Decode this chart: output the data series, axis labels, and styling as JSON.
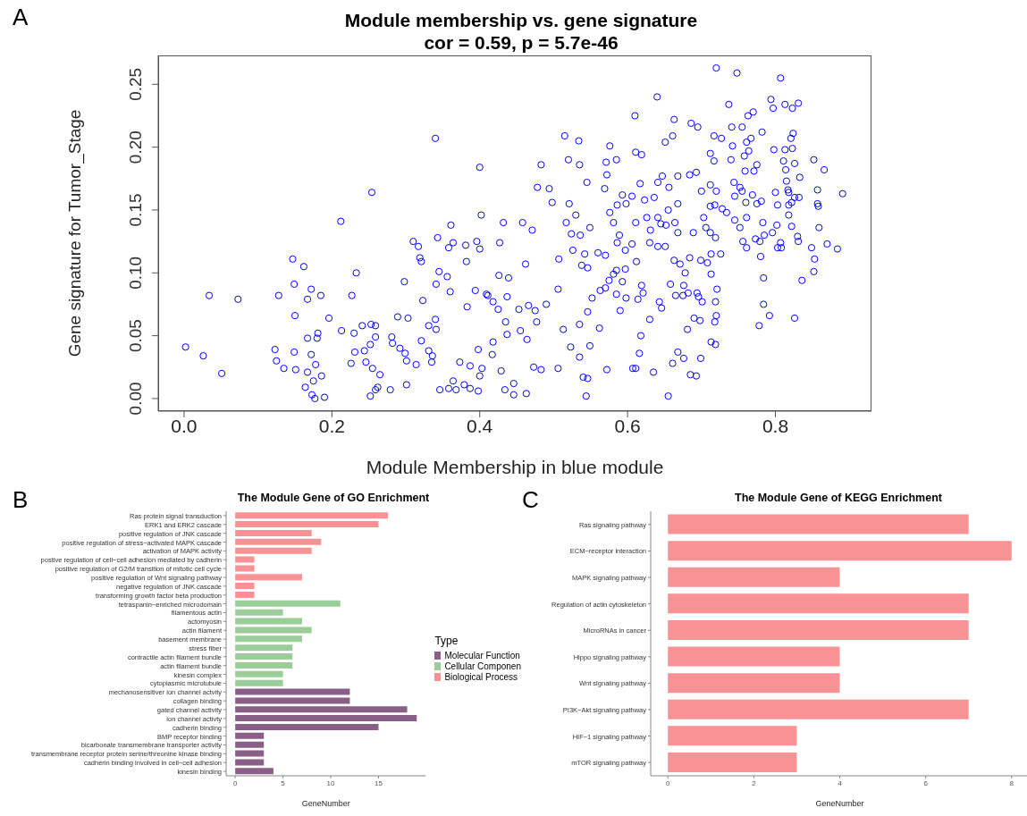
{
  "chart_data": [
    {
      "type": "scatter",
      "title": "Module membership vs. gene signature",
      "subtitle": "cor = 0.59, p = 5.7e-46",
      "xlabel": "Module Membership in blue module",
      "ylabel": "Gene signature for Tumor_Stage",
      "annotations": [
        "A"
      ],
      "marker": "circle",
      "color": "#0000ff",
      "grid": false,
      "xlim": [
        -0.035,
        0.93
      ],
      "ylim": [
        -0.01,
        0.273
      ],
      "xticks": [
        {
          "value": 0,
          "label": "0.0"
        },
        {
          "value": 0.2,
          "label": "0.2"
        },
        {
          "value": 0.4,
          "label": "0.4"
        },
        {
          "value": 0.6,
          "label": "0.6"
        },
        {
          "value": 0.8,
          "label": "0.8"
        }
      ],
      "yticks": [
        {
          "value": 0,
          "label": "0.00"
        },
        {
          "value": 0.05,
          "label": "0.05"
        },
        {
          "value": 0.1,
          "label": "0.10"
        },
        {
          "value": 0.15,
          "label": "0.15"
        },
        {
          "value": 0.2,
          "label": "0.20"
        },
        {
          "value": 0.25,
          "label": "0.25"
        }
      ],
      "x": [
        0.002,
        0.026,
        0.034,
        0.051,
        0.073,
        0.123,
        0.128,
        0.125,
        0.135,
        0.147,
        0.149,
        0.15,
        0.149,
        0.151,
        0.162,
        0.172,
        0.167,
        0.167,
        0.172,
        0.178,
        0.175,
        0.173,
        0.177,
        0.164,
        0.167,
        0.185,
        0.181,
        0.18,
        0.186,
        0.19,
        0.196,
        0.212,
        0.213,
        0.227,
        0.233,
        0.23,
        0.231,
        0.226,
        0.241,
        0.244,
        0.246,
        0.254,
        0.253,
        0.259,
        0.259,
        0.252,
        0.255,
        0.265,
        0.262,
        0.259,
        0.252,
        0.279,
        0.281,
        0.282,
        0.289,
        0.292,
        0.298,
        0.303,
        0.299,
        0.301,
        0.301,
        0.31,
        0.317,
        0.319,
        0.321,
        0.323,
        0.321,
        0.314,
        0.34,
        0.343,
        0.345,
        0.341,
        0.34,
        0.341,
        0.331,
        0.331,
        0.336,
        0.335,
        0.346,
        0.361,
        0.358,
        0.364,
        0.356,
        0.36,
        0.373,
        0.364,
        0.358,
        0.368,
        0.381,
        0.382,
        0.383,
        0.387,
        0.379,
        0.387,
        0.396,
        0.4,
        0.402,
        0.4,
        0.394,
        0.409,
        0.398,
        0.403,
        0.4,
        0.398,
        0.432,
        0.458,
        0.478,
        0.483,
        0.494,
        0.498,
        0.515,
        0.52,
        0.534,
        0.535,
        0.545,
        0.521,
        0.53,
        0.549,
        0.517,
        0.471,
        0.427,
        0.462,
        0.426,
        0.439,
        0.437,
        0.411,
        0.418,
        0.425,
        0.453,
        0.466,
        0.475,
        0.49,
        0.506,
        0.435,
        0.477,
        0.455,
        0.437,
        0.418,
        0.464,
        0.417,
        0.429,
        0.473,
        0.483,
        0.506,
        0.446,
        0.434,
        0.446,
        0.463,
        0.544,
        0.54,
        0.546,
        0.535,
        0.513,
        0.523,
        0.549,
        0.562,
        0.535,
        0.546,
        0.552,
        0.57,
        0.563,
        0.538,
        0.546,
        0.542,
        0.536,
        0.524,
        0.507,
        0.526,
        0.56,
        0.57,
        0.571,
        0.576,
        0.585,
        0.572,
        0.569,
        0.576,
        0.581,
        0.586,
        0.593,
        0.606,
        0.598,
        0.589,
        0.586,
        0.597,
        0.585,
        0.597,
        0.581,
        0.575,
        0.585,
        0.598,
        0.593,
        0.59,
        0.572,
        0.61,
        0.611,
        0.619,
        0.617,
        0.611,
        0.606,
        0.612,
        0.623,
        0.626,
        0.63,
        0.631,
        0.636,
        0.641,
        0.647,
        0.64,
        0.651,
        0.663,
        0.661,
        0.668,
        0.656,
        0.655,
        0.652,
        0.641,
        0.645,
        0.664,
        0.668,
        0.668,
        0.651,
        0.663,
        0.671,
        0.641,
        0.619,
        0.621,
        0.614,
        0.63,
        0.618,
        0.616,
        0.611,
        0.607,
        0.635,
        0.643,
        0.646,
        0.658,
        0.665,
        0.675,
        0.676,
        0.682,
        0.694,
        0.696,
        0.701,
        0.681,
        0.69,
        0.698,
        0.668,
        0.676,
        0.661,
        0.685,
        0.693,
        0.655,
        0.699,
        0.678,
        0.684,
        0.689,
        0.699,
        0.708,
        0.712,
        0.706,
        0.703,
        0.686,
        0.695,
        0.693,
        0.684,
        0.7,
        0.712,
        0.72,
        0.718,
        0.712,
        0.728,
        0.734,
        0.712,
        0.717,
        0.717,
        0.727,
        0.72,
        0.737,
        0.748,
        0.741,
        0.755,
        0.742,
        0.761,
        0.767,
        0.763,
        0.77,
        0.782,
        0.74,
        0.758,
        0.764,
        0.759,
        0.771,
        0.775,
        0.744,
        0.752,
        0.755,
        0.745,
        0.76,
        0.769,
        0.775,
        0.781,
        0.745,
        0.752,
        0.761,
        0.783,
        0.756,
        0.761,
        0.773,
        0.779,
        0.785,
        0.719,
        0.713,
        0.726,
        0.713,
        0.721,
        0.719,
        0.72,
        0.718,
        0.713,
        0.719,
        0.78,
        0.784,
        0.784,
        0.792,
        0.778,
        0.826,
        0.798,
        0.794,
        0.797,
        0.807,
        0.813,
        0.823,
        0.831,
        0.824,
        0.821,
        0.813,
        0.823,
        0.811,
        0.826,
        0.814,
        0.833,
        0.815,
        0.8,
        0.817,
        0.818,
        0.832,
        0.826,
        0.822,
        0.818,
        0.803,
        0.818,
        0.822,
        0.802,
        0.796,
        0.83,
        0.831,
        0.807,
        0.803,
        0.808,
        0.836,
        0.852,
        0.866,
        0.857,
        0.857,
        0.858,
        0.859,
        0.87,
        0.849,
        0.884,
        0.853,
        0.852,
        0.891
      ],
      "values": [
        0.041,
        0.034,
        0.082,
        0.02,
        0.079,
        0.039,
        0.082,
        0.03,
        0.024,
        0.111,
        0.091,
        0.066,
        0.037,
        0.023,
        0.105,
        0.087,
        0.079,
        0.048,
        0.035,
        0.027,
        0.014,
        0.003,
        0.0,
        0.009,
        0.021,
        0.082,
        0.052,
        0.048,
        0.018,
        0.001,
        0.064,
        0.141,
        0.054,
        0.082,
        0.1,
        0.052,
        0.037,
        0.028,
        0.058,
        0.038,
        0.029,
        0.164,
        0.059,
        0.058,
        0.049,
        0.043,
        0.024,
        0.019,
        0.009,
        0.007,
        0.002,
        0.007,
        0.049,
        0.044,
        0.065,
        0.04,
        0.093,
        0.064,
        0.036,
        0.03,
        0.011,
        0.125,
        0.121,
        0.112,
        0.109,
        0.078,
        0.046,
        0.027,
        0.207,
        0.128,
        0.101,
        0.091,
        0.063,
        0.055,
        0.058,
        0.038,
        0.034,
        0.029,
        0.007,
        0.138,
        0.12,
        0.124,
        0.097,
        0.085,
        0.029,
        0.014,
        0.008,
        0.007,
        0.122,
        0.109,
        0.073,
        0.026,
        0.011,
        0.008,
        0.125,
        0.184,
        0.146,
        0.119,
        0.086,
        0.083,
        0.039,
        0.024,
        0.018,
        0.006,
        0.14,
        0.14,
        0.168,
        0.186,
        0.167,
        0.156,
        0.209,
        0.19,
        0.205,
        0.186,
        0.172,
        0.155,
        0.146,
        0.136,
        0.14,
        0.134,
        0.124,
        0.107,
        0.098,
        0.096,
        0.081,
        0.082,
        0.077,
        0.071,
        0.071,
        0.074,
        0.07,
        0.075,
        0.087,
        0.061,
        0.061,
        0.054,
        0.051,
        0.045,
        0.047,
        0.035,
        0.022,
        0.025,
        0.023,
        0.024,
        0.012,
        0.007,
        0.003,
        0.004,
        0.002,
        0.017,
        0.016,
        0.033,
        0.055,
        0.041,
        0.042,
        0.056,
        0.059,
        0.069,
        0.08,
        0.088,
        0.086,
        0.106,
        0.104,
        0.115,
        0.13,
        0.131,
        0.111,
        0.118,
        0.116,
        0.114,
        0.188,
        0.201,
        0.19,
        0.178,
        0.167,
        0.148,
        0.14,
        0.154,
        0.162,
        0.161,
        0.155,
        0.13,
        0.124,
        0.118,
        0.102,
        0.103,
        0.099,
        0.094,
        0.083,
        0.08,
        0.093,
        0.07,
        0.023,
        0.225,
        0.196,
        0.194,
        0.171,
        0.14,
        0.123,
        0.109,
        0.158,
        0.144,
        0.124,
        0.134,
        0.16,
        0.172,
        0.177,
        0.24,
        0.204,
        0.222,
        0.209,
        0.177,
        0.168,
        0.15,
        0.138,
        0.144,
        0.139,
        0.14,
        0.132,
        0.155,
        0.121,
        0.11,
        0.107,
        0.121,
        0.09,
        0.084,
        0.079,
        0.063,
        0.05,
        0.036,
        0.024,
        0.024,
        0.021,
        0.077,
        0.072,
        0.091,
        0.082,
        0.082,
        0.09,
        0.084,
        0.084,
        0.081,
        0.077,
        0.055,
        0.064,
        0.062,
        0.037,
        0.032,
        0.028,
        0.019,
        0.018,
        0.002,
        0.032,
        0.1,
        0.112,
        0.132,
        0.11,
        0.108,
        0.132,
        0.136,
        0.144,
        0.219,
        0.216,
        0.18,
        0.178,
        0.165,
        0.17,
        0.165,
        0.154,
        0.153,
        0.151,
        0.148,
        0.195,
        0.189,
        0.209,
        0.207,
        0.263,
        0.234,
        0.259,
        0.216,
        0.216,
        0.201,
        0.204,
        0.207,
        0.225,
        0.228,
        0.212,
        0.19,
        0.193,
        0.197,
        0.181,
        0.181,
        0.186,
        0.172,
        0.168,
        0.165,
        0.161,
        0.156,
        0.162,
        0.155,
        0.157,
        0.142,
        0.136,
        0.144,
        0.14,
        0.125,
        0.12,
        0.127,
        0.125,
        0.13,
        0.128,
        0.115,
        0.115,
        0.099,
        0.087,
        0.077,
        0.066,
        0.061,
        0.045,
        0.043,
        0.113,
        0.096,
        0.075,
        0.066,
        0.058,
        0.064,
        0.198,
        0.238,
        0.231,
        0.255,
        0.234,
        0.231,
        0.235,
        0.211,
        0.207,
        0.198,
        0.199,
        0.189,
        0.187,
        0.182,
        0.176,
        0.173,
        0.164,
        0.166,
        0.164,
        0.16,
        0.16,
        0.156,
        0.154,
        0.154,
        0.146,
        0.137,
        0.138,
        0.132,
        0.129,
        0.125,
        0.124,
        0.12,
        0.12,
        0.094,
        0.19,
        0.182,
        0.166,
        0.155,
        0.153,
        0.136,
        0.123,
        0.12,
        0.119,
        0.111,
        0.101,
        0.163
      ]
    },
    {
      "type": "bar",
      "orientation": "horizontal",
      "stacked": true,
      "title": "The Module Gene of GO Enrichment",
      "xlabel": "GeneNumber",
      "annotations": [
        "B"
      ],
      "legend": "right",
      "legend_title": "Type",
      "grid": false,
      "categories": [
        "Ras protein signal transduction",
        "ERK1 and ERK2 cascade",
        "positive regulation of JNK cascade",
        "positive regulation of stress−activated MAPK cascade",
        "activation of MAPK activity",
        "postive regulation of cell−cell adhesion mediated by cadherin",
        "positive regulation of G2/M transition of mitotic cell cycle",
        "positive regulation of Wnt signaling pathway",
        "negative regulation of JNK cascade",
        "transforming growth factor beta production",
        "tetraspanin−enriched microdomain",
        "filamentous actin",
        "actomyosin",
        "actin filament",
        "basement membrane",
        "stress fiber",
        "contractile actin filament bundle",
        "actin filament bundle",
        "kinesin complex",
        "cytoplasmic microtubule",
        "mechanosensitiver ion channel actvity",
        "collagen binding",
        "gated channel activity",
        "ion channel activty",
        "cadherin binding",
        "BMP receptor binding",
        "bicarbonate transmembrane transporter activity",
        "transmembrane receptor protein serine/threonine kinase binding",
        "cadherin binding involved in cell−cell adhesion",
        "kinesin binding"
      ],
      "xlim": [
        -0.95,
        19.95
      ],
      "xticks": [
        0,
        5,
        10,
        15
      ],
      "series": [
        {
          "name": "Molecular Function",
          "color": "#8a5f87",
          "values": [
            null,
            null,
            null,
            null,
            null,
            null,
            null,
            null,
            null,
            null,
            null,
            null,
            null,
            null,
            null,
            null,
            null,
            null,
            null,
            null,
            12,
            12,
            18,
            19,
            15,
            3,
            3,
            3,
            3,
            4
          ]
        },
        {
          "name": "Cellular Componen",
          "color": "#9acd98",
          "values": [
            null,
            null,
            null,
            null,
            null,
            null,
            null,
            null,
            null,
            null,
            11,
            5,
            7,
            8,
            7,
            6,
            6,
            6,
            5,
            5,
            null,
            null,
            null,
            null,
            null,
            null,
            null,
            null,
            null,
            null
          ]
        },
        {
          "name": "Biological Process",
          "color": "#f89294",
          "values": [
            16,
            15,
            8,
            9,
            8,
            2,
            2,
            7,
            2,
            2,
            null,
            null,
            null,
            null,
            null,
            null,
            null,
            null,
            null,
            null,
            null,
            null,
            null,
            null,
            null,
            null,
            null,
            null,
            null,
            null
          ]
        }
      ]
    },
    {
      "type": "bar",
      "orientation": "horizontal",
      "title": "The Module Gene of KEGG Enrichment",
      "xlabel": "GeneNumber",
      "annotations": [
        "C"
      ],
      "grid": false,
      "categories": [
        "Ras signaling pathway",
        "ECM−receptor interaction",
        "MAPK signaling pathway",
        "Regulation of actin cytoskeleton",
        "MicroRNAs in cancer",
        "Hippo signaling pathway",
        "Wnt signaling pathway",
        "PI3K−Akt signaling pathway",
        "HIF−1 signaling pathway",
        "mTOR signaling pathway"
      ],
      "xlim": [
        -0.4,
        8.4
      ],
      "xticks": [
        0,
        2,
        4,
        6,
        8
      ],
      "color": "#f89294",
      "values": [
        7,
        8,
        4,
        7,
        7,
        4,
        4,
        7,
        3,
        3
      ]
    }
  ]
}
